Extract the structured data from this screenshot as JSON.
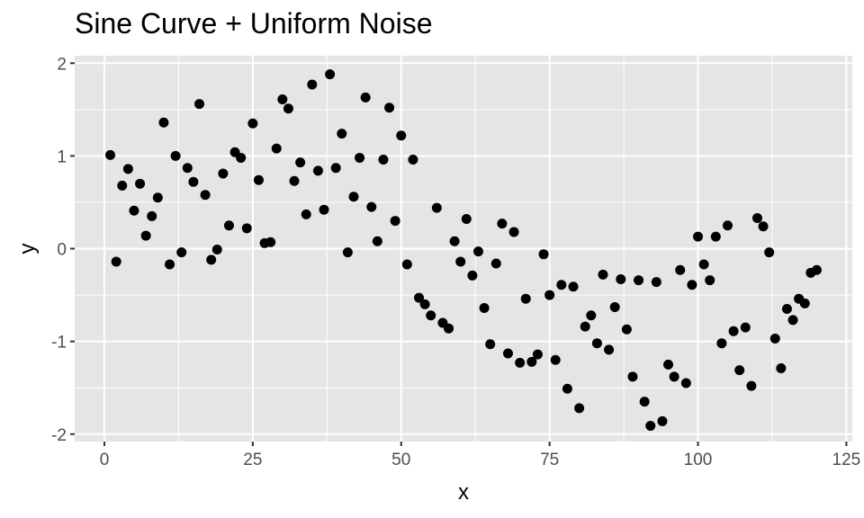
{
  "chart_data": {
    "type": "scatter",
    "title": "Sine Curve + Uniform Noise",
    "xlabel": "x",
    "ylabel": "y",
    "xlim": [
      -5,
      126
    ],
    "ylim": [
      -2.08,
      2.08
    ],
    "x_ticks": [
      0,
      25,
      50,
      75,
      100,
      125
    ],
    "y_ticks": [
      -2,
      -1,
      0,
      1,
      2
    ],
    "x_tick_labels": [
      "0",
      "25",
      "50",
      "75",
      "100",
      "125"
    ],
    "y_tick_labels": [
      "-2",
      "-1",
      "0",
      "1",
      "2"
    ],
    "grid": true,
    "legend": "none",
    "colors": {
      "panel": "#e5e5e5",
      "grid": "#ffffff",
      "point": "#000000",
      "text": "#4d4d4d"
    },
    "x": [
      1,
      2,
      3,
      4,
      5,
      6,
      7,
      8,
      9,
      10,
      11,
      12,
      13,
      14,
      15,
      16,
      17,
      18,
      19,
      20,
      21,
      22,
      23,
      24,
      25,
      26,
      27,
      28,
      29,
      30,
      31,
      32,
      33,
      34,
      35,
      36,
      37,
      38,
      39,
      40,
      41,
      42,
      43,
      44,
      45,
      46,
      47,
      48,
      49,
      50,
      51,
      52,
      53,
      54,
      55,
      56,
      57,
      58,
      59,
      60,
      61,
      62,
      63,
      64,
      65,
      66,
      67,
      68,
      69,
      70,
      71,
      72,
      73,
      74,
      75,
      76,
      77,
      78,
      79,
      80,
      81,
      82,
      83,
      84,
      85,
      86,
      87,
      88,
      89,
      90,
      91,
      92,
      93,
      94,
      95,
      96,
      97,
      98,
      99,
      100,
      101,
      102,
      103,
      104,
      105,
      106,
      107,
      108,
      109,
      110,
      111,
      112,
      113,
      114,
      115,
      116,
      117,
      118,
      119,
      120
    ],
    "y": [
      1.01,
      -0.14,
      0.68,
      0.86,
      0.41,
      0.7,
      0.14,
      0.35,
      0.55,
      1.36,
      -0.17,
      1.0,
      -0.04,
      0.87,
      0.72,
      1.56,
      0.58,
      -0.12,
      -0.01,
      0.81,
      0.25,
      1.04,
      0.98,
      0.22,
      1.35,
      0.74,
      0.06,
      0.07,
      1.08,
      1.61,
      1.51,
      0.73,
      0.93,
      0.37,
      1.77,
      0.84,
      0.42,
      1.88,
      0.87,
      1.24,
      -0.04,
      0.56,
      0.98,
      1.63,
      0.45,
      0.08,
      0.96,
      1.52,
      0.3,
      1.22,
      -0.17,
      0.96,
      -0.53,
      -0.6,
      -0.72,
      0.44,
      -0.8,
      -0.86,
      0.08,
      -0.14,
      0.32,
      -0.29,
      -0.03,
      -0.64,
      -1.03,
      -0.16,
      0.27,
      -1.13,
      0.18,
      -1.23,
      -0.54,
      -1.22,
      -1.14,
      -0.06,
      -0.5,
      -1.2,
      -0.39,
      -1.51,
      -0.41,
      -1.72,
      -0.84,
      -0.72,
      -1.02,
      -0.28,
      -1.09,
      -0.63,
      -0.33,
      -0.87,
      -1.38,
      -0.34,
      -1.65,
      -1.91,
      -0.36,
      -1.86,
      -1.25,
      -1.38,
      -0.23,
      -1.45,
      -0.39,
      0.13,
      -0.17,
      -0.34,
      0.13,
      -1.02,
      0.25,
      -0.89,
      -1.31,
      -0.85,
      -1.48,
      0.33,
      0.24,
      -0.04,
      -0.97,
      -1.29,
      -0.65,
      -0.77,
      -0.54,
      -0.59,
      -0.26,
      -0.23
    ]
  }
}
